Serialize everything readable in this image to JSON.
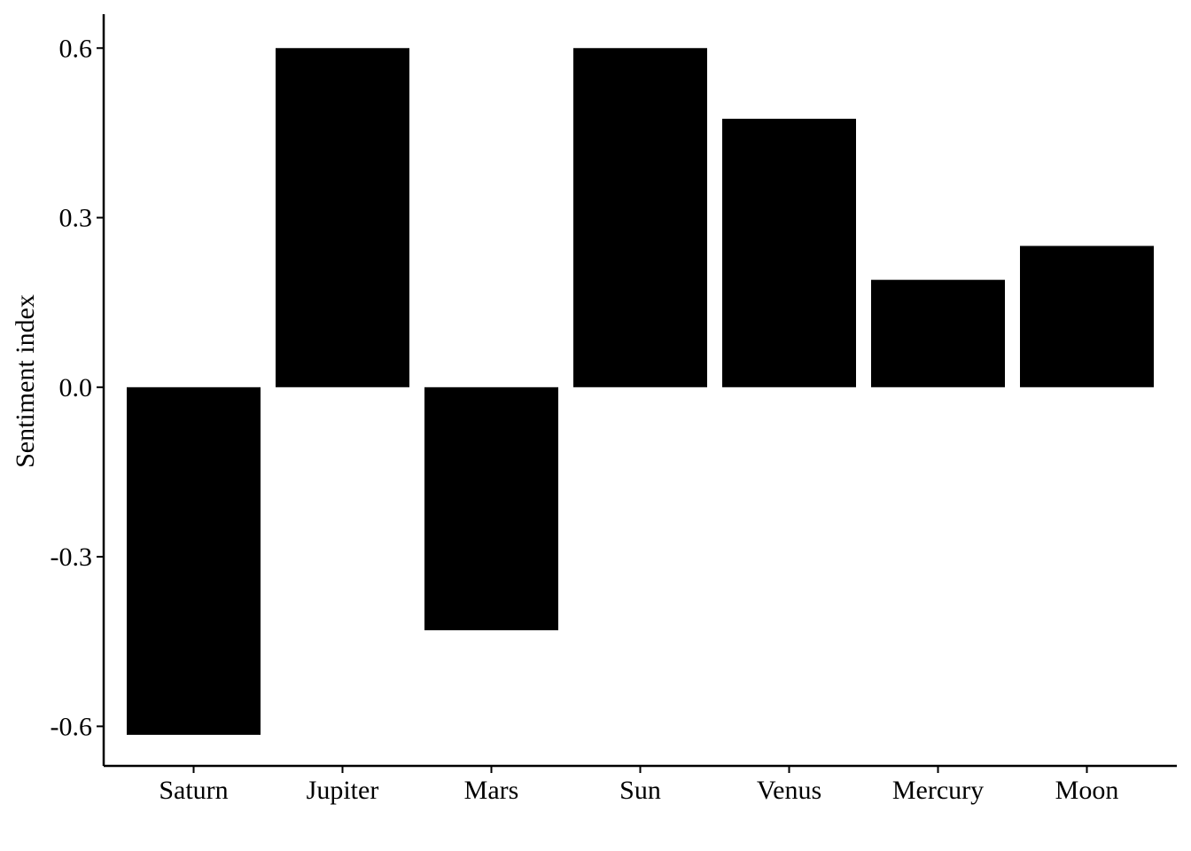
{
  "chart_data": {
    "type": "bar",
    "title": "",
    "xlabel": "",
    "ylabel": "Sentiment index",
    "categories": [
      "Saturn",
      "Jupiter",
      "Mars",
      "Sun",
      "Venus",
      "Mercury",
      "Moon"
    ],
    "values": [
      -0.615,
      0.6,
      -0.43,
      0.6,
      0.475,
      0.19,
      0.25
    ],
    "ylim": [
      -0.67,
      0.66
    ],
    "yticks": [
      -0.6,
      -0.3,
      0.0,
      0.3,
      0.6
    ],
    "ytick_labels": [
      "-0.6",
      "-0.3",
      "0.0",
      "0.3",
      "0.6"
    ],
    "grid": false,
    "legend": "none",
    "bar_color": "#000000"
  }
}
